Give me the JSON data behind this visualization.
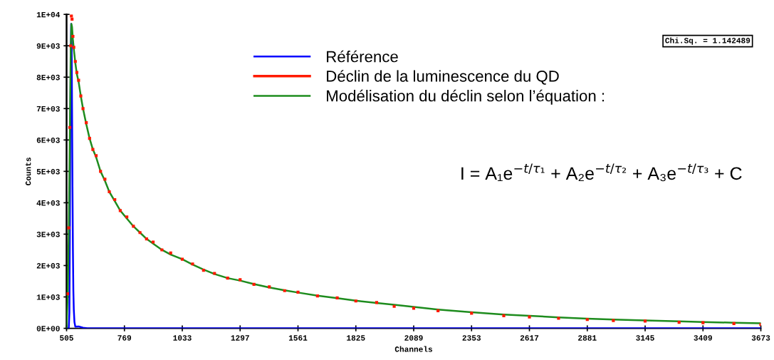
{
  "chart_data": {
    "type": "line",
    "xlabel": "Channels",
    "ylabel": "Counts",
    "xlim": [
      505,
      3673
    ],
    "xticks": [
      505,
      769,
      1033,
      1297,
      1561,
      1825,
      2089,
      2353,
      2617,
      2881,
      3145,
      3409,
      3673
    ],
    "ylim": [
      0,
      10000
    ],
    "yticks": [
      {
        "value": 0,
        "label": "0E+00"
      },
      {
        "value": 1000,
        "label": "1E+03"
      },
      {
        "value": 2000,
        "label": "2E+03"
      },
      {
        "value": 3000,
        "label": "3E+03"
      },
      {
        "value": 4000,
        "label": "4E+03"
      },
      {
        "value": 5000,
        "label": "5E+03"
      },
      {
        "value": 6000,
        "label": "6E+03"
      },
      {
        "value": 7000,
        "label": "7E+03"
      },
      {
        "value": 8000,
        "label": "8E+03"
      },
      {
        "value": 9000,
        "label": "9E+03"
      },
      {
        "value": 10000,
        "label": "1E+04"
      }
    ],
    "grid": false,
    "legend": "top",
    "marker": "none",
    "series": [
      {
        "name": "Référence",
        "type": "line",
        "color": "#0000ff",
        "x": [
          505,
          515,
          518,
          520,
          522,
          524,
          526,
          528,
          530,
          532,
          534,
          536,
          538,
          541,
          545,
          560,
          580,
          600,
          1000,
          1500,
          2000,
          2500,
          3000,
          3673
        ],
        "values": [
          0,
          0,
          500,
          3000,
          6000,
          8500,
          9700,
          9200,
          7000,
          4500,
          2500,
          1200,
          600,
          200,
          50,
          60,
          20,
          0,
          0,
          0,
          0,
          0,
          0,
          0
        ]
      },
      {
        "name": "Déclin de la luminescence du QD",
        "type": "scatter",
        "marker": "square",
        "color": "#ff1a00",
        "x": [
          510,
          515,
          520,
          524,
          527,
          530,
          534,
          538,
          545,
          552,
          560,
          570,
          580,
          595,
          610,
          625,
          640,
          660,
          680,
          700,
          725,
          750,
          780,
          810,
          840,
          870,
          900,
          940,
          980,
          1033,
          1080,
          1130,
          1180,
          1240,
          1297,
          1360,
          1430,
          1500,
          1561,
          1650,
          1740,
          1825,
          1920,
          2000,
          2089,
          2200,
          2353,
          2500,
          2617,
          2750,
          2881,
          3000,
          3145,
          3300,
          3409,
          3550,
          3673
        ],
        "values": [
          1100,
          3200,
          6400,
          9000,
          9950,
          9850,
          9300,
          8950,
          8500,
          8150,
          7900,
          7400,
          7000,
          6550,
          6050,
          5700,
          5500,
          5000,
          4750,
          4350,
          4100,
          3750,
          3550,
          3250,
          3050,
          2850,
          2750,
          2500,
          2400,
          2200,
          2050,
          1850,
          1750,
          1600,
          1550,
          1400,
          1320,
          1200,
          1150,
          1030,
          970,
          870,
          820,
          700,
          640,
          560,
          480,
          400,
          360,
          320,
          280,
          250,
          230,
          190,
          180,
          150,
          120
        ]
      },
      {
        "name": "Modélisation du déclin selon l’équation :",
        "color": "#1e8c1e",
        "x": [
          505,
          510,
          515,
          520,
          524,
          527,
          530,
          534,
          538,
          545,
          552,
          560,
          570,
          580,
          595,
          610,
          625,
          640,
          660,
          680,
          700,
          725,
          750,
          780,
          810,
          840,
          870,
          900,
          940,
          980,
          1033,
          1080,
          1130,
          1180,
          1240,
          1297,
          1360,
          1430,
          1500,
          1561,
          1650,
          1740,
          1825,
          1920,
          2000,
          2089,
          2200,
          2353,
          2500,
          2617,
          2750,
          2881,
          3000,
          3145,
          3300,
          3409,
          3550,
          3673
        ],
        "values": [
          0,
          1000,
          3000,
          6200,
          8900,
          9700,
          9600,
          9200,
          8900,
          8450,
          8100,
          7850,
          7400,
          7000,
          6500,
          6050,
          5700,
          5450,
          5000,
          4700,
          4350,
          4050,
          3750,
          3500,
          3250,
          3050,
          2850,
          2700,
          2500,
          2350,
          2200,
          2030,
          1870,
          1730,
          1600,
          1520,
          1410,
          1300,
          1210,
          1140,
          1040,
          960,
          880,
          810,
          750,
          680,
          600,
          510,
          440,
          400,
          350,
          310,
          280,
          250,
          220,
          200,
          180,
          160
        ]
      }
    ],
    "annotations": [
      "Chi.Sq. = 1.142489",
      "I = A₁e$^{−t/τ₁}$ + A₂e$^{−t/τ₂}$ + A₃e$^{−t/τ₃}$ + C"
    ]
  }
}
